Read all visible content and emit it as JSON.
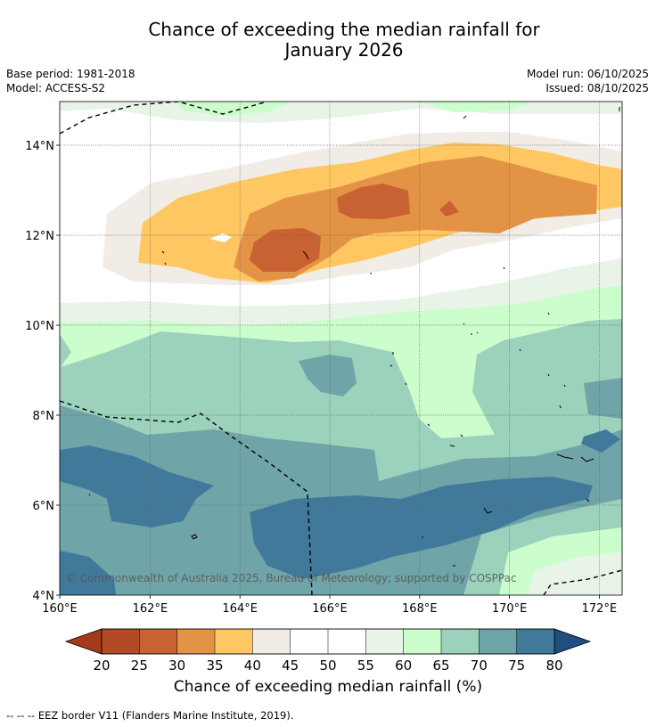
{
  "title_line1": "Chance of exceeding the median rainfall for",
  "title_line2": "January 2026",
  "base_period": "Base period: 1981-2018",
  "model": "Model: ACCESS-S2",
  "model_run": "Model run: 06/10/2025",
  "issued": "Issued: 08/10/2025",
  "copyright": "© Commonwealth of Australia 2025, Bureau of Meteorology; supported by COSPPac",
  "lon_labels": [
    "160°E",
    "162°E",
    "164°E",
    "166°E",
    "168°E",
    "170°E",
    "172°E"
  ],
  "lat_labels": [
    "14°N",
    "12°N",
    "10°N",
    "8°N",
    "6°N",
    "4°N"
  ],
  "colorbar": {
    "title": "Chance of exceeding median rainfall (%)",
    "ticks": [
      "20",
      "25",
      "30",
      "35",
      "40",
      "45",
      "50",
      "55",
      "60",
      "65",
      "70",
      "75",
      "80"
    ],
    "colors": [
      "#a53a1a",
      "#b14a25",
      "#c96232",
      "#e39345",
      "#fec762",
      "#f1ece6",
      "#ffffff",
      "#ffffff",
      "#e8f4e7",
      "#cbfdcd",
      "#9cd1bb",
      "#6fa4a8",
      "#41799a",
      "#1f4f7e"
    ]
  },
  "footnote": "--  --  -- EEZ border V11 (Flanders Marine Institute, 2019).",
  "map_extent": {
    "lon_min": 160,
    "lon_max": 172.5,
    "lat_min": 4,
    "lat_max": 15.1
  }
}
